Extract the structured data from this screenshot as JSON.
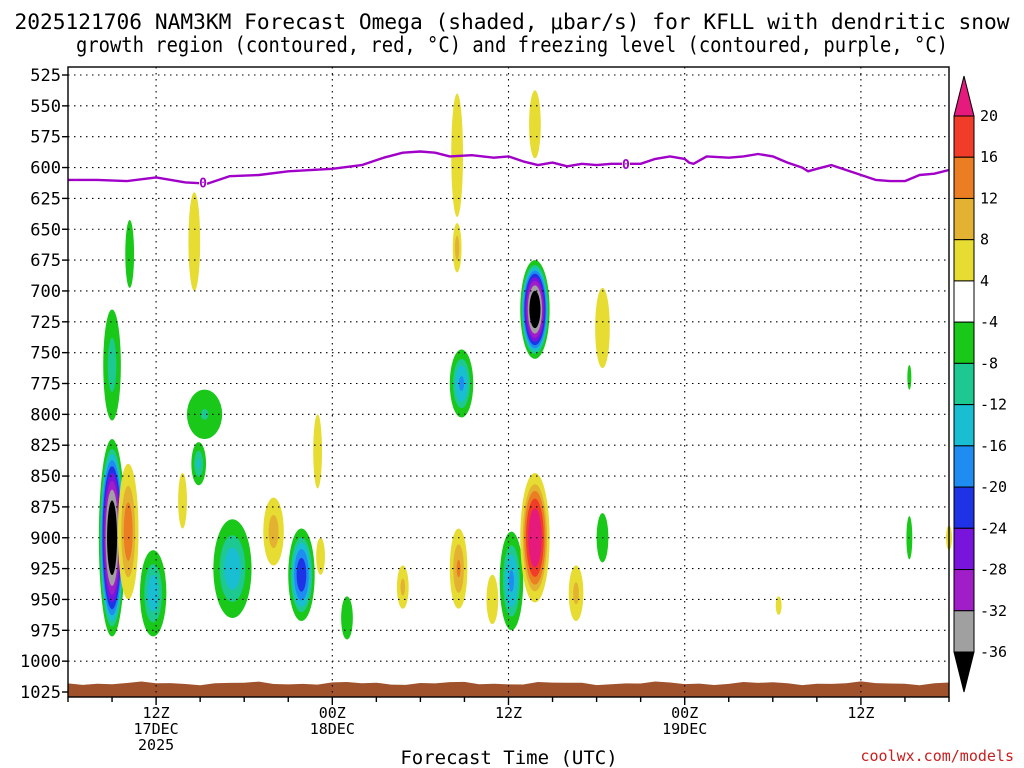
{
  "chart_data": {
    "type": "heatmap",
    "title_line1": "2025121706 NAM3KM Forecast Omega (shaded, μbar/s) for KFLL with dendritic snow",
    "title_line2": "growth region (contoured, red, °C) and freezing level (contoured, purple, °C)",
    "xlabel": "Forecast Time (UTC)",
    "ylabel": "Pressure (hPa)",
    "credit": "coolwx.com/models",
    "x_range_hours": [
      0,
      60
    ],
    "y_range_hpa": [
      1025,
      525
    ],
    "y_ticks": [
      "525",
      "550",
      "575",
      "600",
      "625",
      "650",
      "675",
      "700",
      "725",
      "750",
      "775",
      "800",
      "825",
      "850",
      "875",
      "900",
      "925",
      "950",
      "975",
      "1000",
      "1025"
    ],
    "x_ticks": [
      {
        "hour": 6,
        "line1": "12Z",
        "line2": "17DEC",
        "line3": "2025"
      },
      {
        "hour": 18,
        "line1": "00Z",
        "line2": "18DEC",
        "line3": ""
      },
      {
        "hour": 30,
        "line1": "12Z",
        "line2": "",
        "line3": ""
      },
      {
        "hour": 42,
        "line1": "00Z",
        "line2": "19DEC",
        "line3": ""
      },
      {
        "hour": 54,
        "line1": "12Z",
        "line2": "",
        "line3": ""
      }
    ],
    "colorbar": {
      "labels": [
        "20",
        "16",
        "12",
        "8",
        "4",
        "-4",
        "-8",
        "-12",
        "-16",
        "-20",
        "-24",
        "-28",
        "-32",
        "-36"
      ],
      "bins": [
        {
          "lo": 20,
          "hi": null,
          "color": "#e6197d"
        },
        {
          "lo": 16,
          "hi": 20,
          "color": "#f03c28"
        },
        {
          "lo": 12,
          "hi": 16,
          "color": "#eb7d23"
        },
        {
          "lo": 8,
          "hi": 12,
          "color": "#e3b232"
        },
        {
          "lo": 4,
          "hi": 8,
          "color": "#e6dc32"
        },
        {
          "lo": -4,
          "hi": 4,
          "color": "#ffffff"
        },
        {
          "lo": -8,
          "hi": -4,
          "color": "#19c819"
        },
        {
          "lo": -12,
          "hi": -8,
          "color": "#1ec891"
        },
        {
          "lo": -16,
          "hi": -12,
          "color": "#19bed2"
        },
        {
          "lo": -20,
          "hi": -16,
          "color": "#1e8cf0"
        },
        {
          "lo": -24,
          "hi": -20,
          "color": "#1e32e6"
        },
        {
          "lo": -28,
          "hi": -24,
          "color": "#7814dc"
        },
        {
          "lo": -32,
          "hi": -28,
          "color": "#a01ec8"
        },
        {
          "lo": -36,
          "hi": -32,
          "color": "#a0a0a0"
        },
        {
          "lo": null,
          "hi": -36,
          "color": "#000000"
        }
      ]
    },
    "omega_cells": [
      {
        "t": 3.0,
        "p": 900,
        "dt": 0.9,
        "dp": 160,
        "min": -40
      },
      {
        "t": 3.0,
        "p": 760,
        "dt": 0.6,
        "dp": 90,
        "min": -10
      },
      {
        "t": 4.1,
        "p": 895,
        "dt": 0.7,
        "dp": 110,
        "min": 14
      },
      {
        "t": 4.2,
        "p": 670,
        "dt": 0.3,
        "dp": 55,
        "min": -6
      },
      {
        "t": 5.8,
        "p": 945,
        "dt": 0.9,
        "dp": 70,
        "min": -14
      },
      {
        "t": 7.8,
        "p": 870,
        "dt": 0.3,
        "dp": 45,
        "min": 5
      },
      {
        "t": 8.6,
        "p": 660,
        "dt": 0.4,
        "dp": 80,
        "min": 6
      },
      {
        "t": 9.3,
        "p": 800,
        "dt": 1.2,
        "dp": 40,
        "min": -8
      },
      {
        "t": 8.9,
        "p": 840,
        "dt": 0.5,
        "dp": 35,
        "min": -12
      },
      {
        "t": 11.2,
        "p": 925,
        "dt": 1.3,
        "dp": 80,
        "min": -14
      },
      {
        "t": 14.0,
        "p": 895,
        "dt": 0.7,
        "dp": 55,
        "min": 10
      },
      {
        "t": 15.9,
        "p": 930,
        "dt": 0.9,
        "dp": 75,
        "min": -22
      },
      {
        "t": 17.0,
        "p": 830,
        "dt": 0.3,
        "dp": 60,
        "min": 5
      },
      {
        "t": 17.2,
        "p": 915,
        "dt": 0.3,
        "dp": 30,
        "min": 6
      },
      {
        "t": 19.0,
        "p": 965,
        "dt": 0.4,
        "dp": 35,
        "min": -6
      },
      {
        "t": 22.8,
        "p": 940,
        "dt": 0.4,
        "dp": 35,
        "min": 9
      },
      {
        "t": 26.5,
        "p": 590,
        "dt": 0.4,
        "dp": 100,
        "min": 7
      },
      {
        "t": 26.5,
        "p": 665,
        "dt": 0.3,
        "dp": 40,
        "min": 10
      },
      {
        "t": 26.8,
        "p": 775,
        "dt": 0.8,
        "dp": 55,
        "min": -16
      },
      {
        "t": 26.6,
        "p": 925,
        "dt": 0.6,
        "dp": 65,
        "min": 12
      },
      {
        "t": 28.9,
        "p": 950,
        "dt": 0.4,
        "dp": 40,
        "min": 6
      },
      {
        "t": 30.2,
        "p": 935,
        "dt": 0.8,
        "dp": 80,
        "min": -16
      },
      {
        "t": 31.8,
        "p": 565,
        "dt": 0.4,
        "dp": 55,
        "min": 6
      },
      {
        "t": 31.8,
        "p": 715,
        "dt": 1.0,
        "dp": 80,
        "min": -40
      },
      {
        "t": 31.8,
        "p": 900,
        "dt": 1.0,
        "dp": 105,
        "min": 24
      },
      {
        "t": 34.6,
        "p": 945,
        "dt": 0.5,
        "dp": 45,
        "min": 9
      },
      {
        "t": 36.4,
        "p": 730,
        "dt": 0.5,
        "dp": 65,
        "min": 6
      },
      {
        "t": 36.4,
        "p": 900,
        "dt": 0.4,
        "dp": 40,
        "min": -6
      },
      {
        "t": 48.4,
        "p": 955,
        "dt": 0.2,
        "dp": 15,
        "min": 6
      },
      {
        "t": 57.3,
        "p": 770,
        "dt": 0.1,
        "dp": 20,
        "min": -6
      },
      {
        "t": 57.3,
        "p": 900,
        "dt": 0.2,
        "dp": 35,
        "min": -6
      },
      {
        "t": 60.0,
        "p": 900,
        "dt": 0.2,
        "dp": 20,
        "min": 5
      }
    ],
    "freezing_level": {
      "label": "0",
      "label_points": [
        {
          "t": 9.2,
          "p": 612
        },
        {
          "t": 38.0,
          "p": 597
        }
      ],
      "points": [
        [
          0,
          610
        ],
        [
          2,
          610
        ],
        [
          4,
          611
        ],
        [
          6,
          608
        ],
        [
          8,
          612
        ],
        [
          9.5,
          613
        ],
        [
          11,
          607
        ],
        [
          13,
          606
        ],
        [
          15,
          603
        ],
        [
          18,
          601
        ],
        [
          20,
          598
        ],
        [
          21.5,
          592
        ],
        [
          22.8,
          588
        ],
        [
          24,
          587
        ],
        [
          25,
          588
        ],
        [
          26,
          591
        ],
        [
          27.5,
          590
        ],
        [
          29,
          592
        ],
        [
          30,
          591
        ],
        [
          31,
          595
        ],
        [
          32,
          598
        ],
        [
          33,
          596
        ],
        [
          34,
          599
        ],
        [
          35,
          597
        ],
        [
          36,
          598
        ],
        [
          37,
          597
        ],
        [
          39,
          597
        ],
        [
          40,
          593
        ],
        [
          41,
          591
        ],
        [
          42,
          593
        ],
        [
          42.3,
          596
        ],
        [
          42.6,
          597
        ],
        [
          43.5,
          591
        ],
        [
          45,
          592
        ],
        [
          46,
          591
        ],
        [
          47,
          589
        ],
        [
          48,
          591
        ],
        [
          49,
          596
        ],
        [
          50,
          600
        ],
        [
          50.4,
          603
        ],
        [
          51,
          601
        ],
        [
          52,
          598
        ],
        [
          53.5,
          604
        ],
        [
          55,
          610
        ],
        [
          56,
          611
        ],
        [
          57,
          611
        ],
        [
          58,
          606
        ],
        [
          59,
          605
        ],
        [
          60,
          602
        ]
      ]
    },
    "ground_hpa": 1018
  }
}
